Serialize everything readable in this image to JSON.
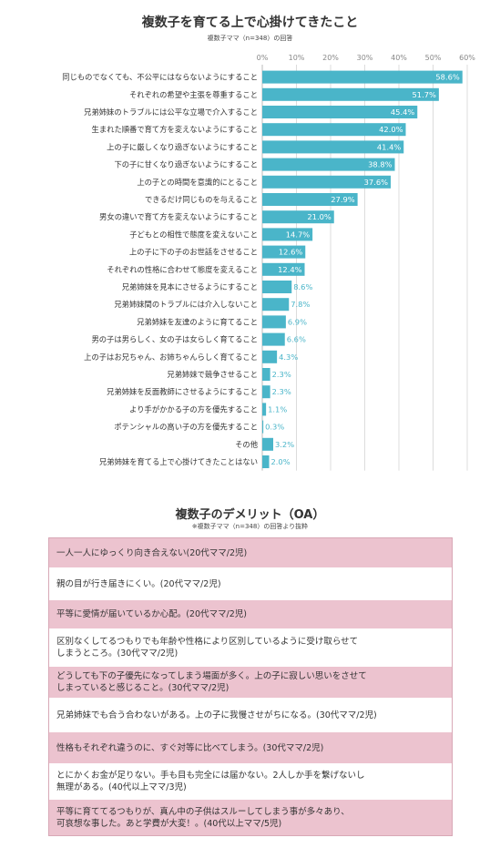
{
  "chart_data": {
    "type": "bar",
    "orientation": "horizontal",
    "title": "複数子を育てる上で心掛けてきたこと",
    "subtitle": "複数子ママ（n=348）の回答",
    "xlim": [
      0,
      60
    ],
    "x_ticks": [
      "0%",
      "10%",
      "20%",
      "30%",
      "40%",
      "50%",
      "60%"
    ],
    "grid": true,
    "bar_color": "#4ab5c9",
    "categories": [
      "同じものでなくても、不公平にはならないようにすること",
      "それぞれの希望や主張を尊重すること",
      "兄弟姉妹のトラブルには公平な立場で介入すること",
      "生まれた順番で育て方を変えないようにすること",
      "上の子に厳しくなり過ぎないようにすること",
      "下の子に甘くなり過ぎないようにすること",
      "上の子との時間を意識的にとること",
      "できるだけ同じものを与えること",
      "男女の違いで育て方を変えないようにすること",
      "子どもとの相性で態度を変えないこと",
      "上の子に下の子のお世話をさせること",
      "それぞれの性格に合わせて態度を変えること",
      "兄弟姉妹を見本にさせるようにすること",
      "兄弟姉妹間のトラブルには介入しないこと",
      "兄弟姉妹を友達のように育てること",
      "男の子は男らしく、女の子は女らしく育てること",
      "上の子はお兄ちゃん、お姉ちゃんらしく育てること",
      "兄弟姉妹で競争させること",
      "兄弟姉妹を反面教師にさせるようにすること",
      "より手がかかる子の方を優先すること",
      "ポテンシャルの高い子の方を優先すること",
      "その他",
      "兄弟姉妹を育てる上で心掛けてきたことはない"
    ],
    "values": [
      58.6,
      51.7,
      45.4,
      42.0,
      41.4,
      38.8,
      37.6,
      27.9,
      21.0,
      14.7,
      12.6,
      12.4,
      8.6,
      7.8,
      6.9,
      6.6,
      4.3,
      2.3,
      2.3,
      1.1,
      0.3,
      3.2,
      2.0
    ],
    "value_labels": [
      "58.6%",
      "51.7%",
      "45.4%",
      "42.0%",
      "41.4%",
      "38.8%",
      "37.6%",
      "27.9%",
      "21.0%",
      "14.7%",
      "12.6%",
      "12.4%",
      "8.6%",
      "7.8%",
      "6.9%",
      "6.6%",
      "4.3%",
      "2.3%",
      "2.3%",
      "1.1%",
      "0.3%",
      "3.2%",
      "2.0%"
    ]
  },
  "oa": {
    "title": "複数子のデメリット（OA）",
    "subtitle": "※複数子ママ（n=348）の回答より抜粋",
    "items": [
      {
        "text": "一人一人にゆっくり向き合えない(20代ママ/2児)",
        "style": "pink"
      },
      {
        "text": "親の目が行き届きにくい。(20代ママ/2児)",
        "style": "white"
      },
      {
        "text": "平等に愛情が届いているか心配。(20代ママ/2児)",
        "style": "pink"
      },
      {
        "text": "区別なくしてるつもりでも年齢や性格により区別しているように受け取らせて\nしまうところ。(30代ママ/2児)",
        "style": "white"
      },
      {
        "text": "どうしても下の子優先になってしまう場面が多く。上の子に寂しい思いをさせて\nしまっていると感じること。(30代ママ/2児)",
        "style": "pink"
      },
      {
        "text": "兄弟姉妹でも合う合わないがある。上の子に我慢させがちになる。(30代ママ/2児)",
        "style": "white"
      },
      {
        "text": "性格もそれぞれ違うのに、すぐ対等に比べてしまう。(30代ママ/2児)",
        "style": "pink"
      },
      {
        "text": "とにかくお金が足りない。手も目も完全には届かない。2人しか手を繋げないし\n無理がある。(40代以上ママ/3児)",
        "style": "white"
      },
      {
        "text": "平等に育ててるつもりが、真ん中の子供はスルーしてしまう事が多々あり、\n可哀想な事した。あと学費が大変！。(40代以上ママ/5児)",
        "style": "pink"
      }
    ]
  }
}
